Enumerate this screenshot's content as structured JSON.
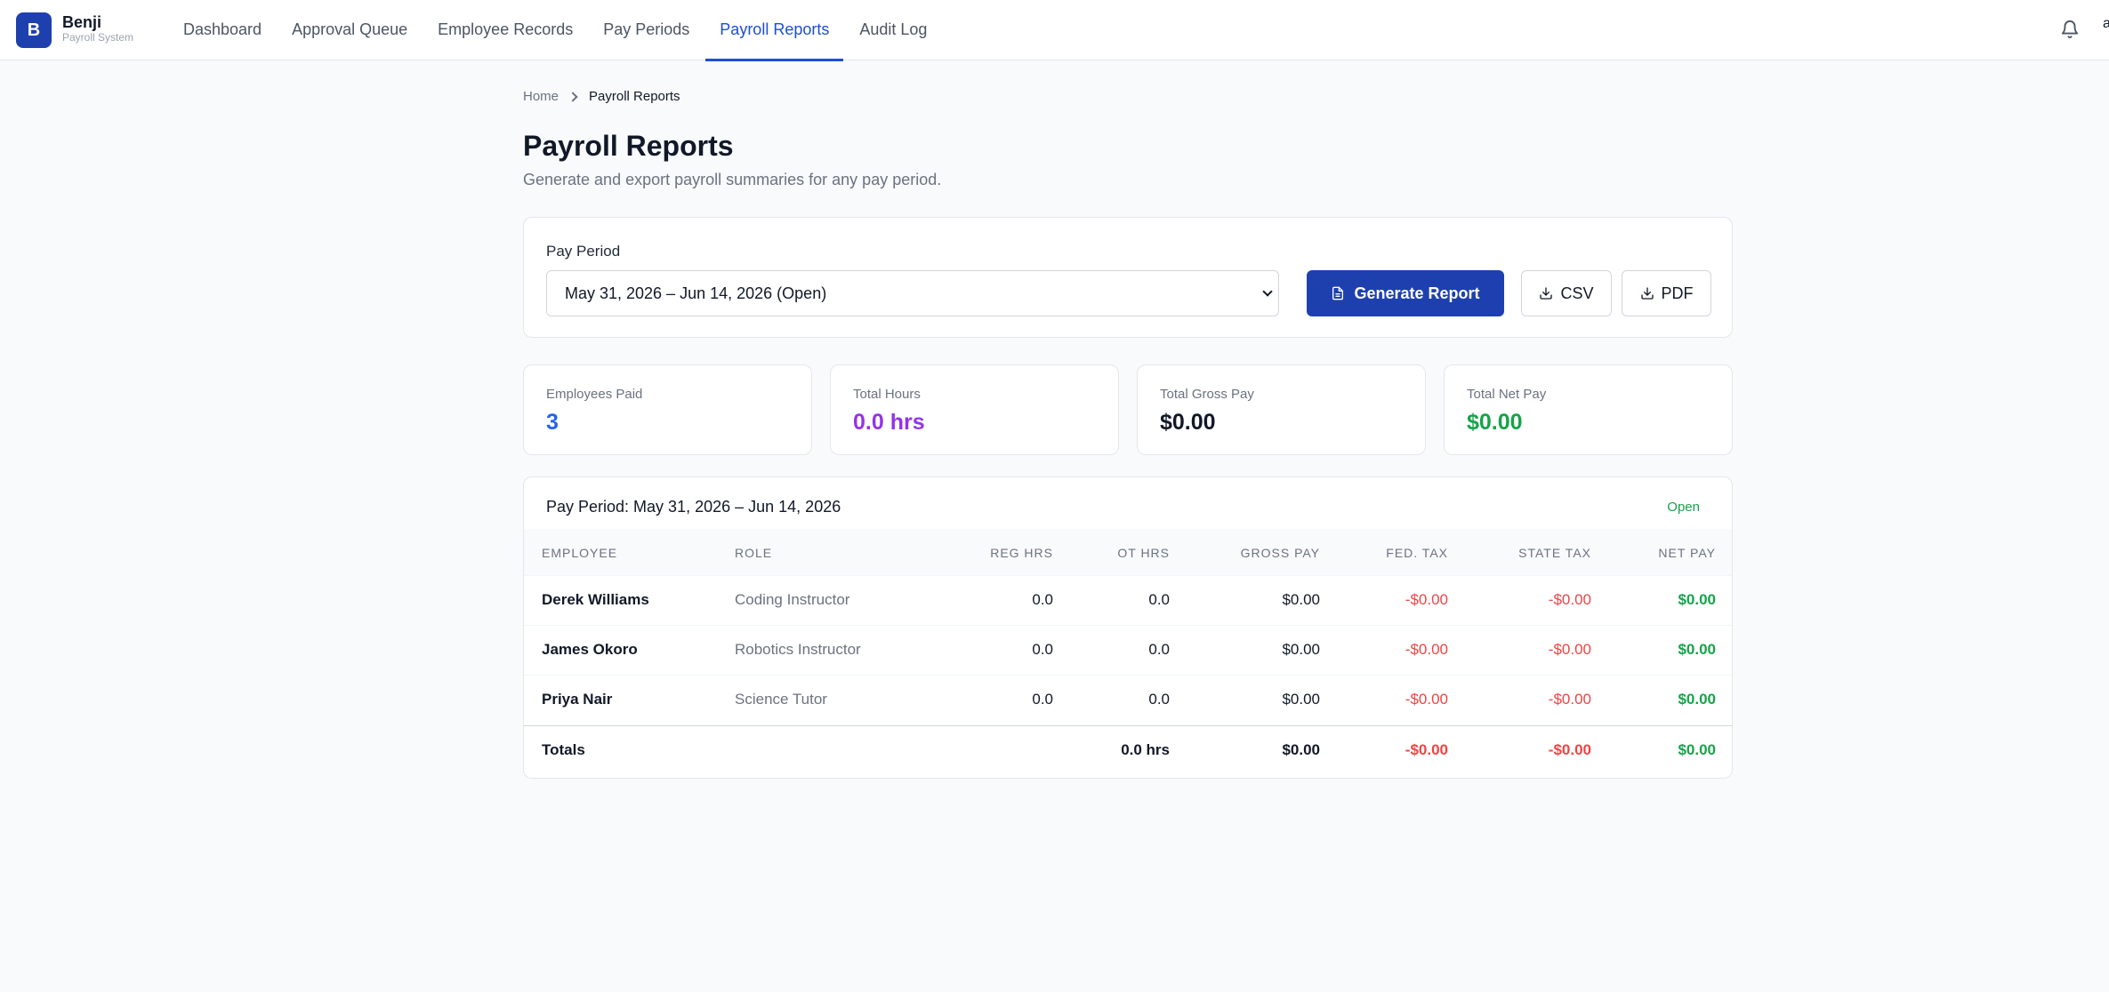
{
  "app": {
    "logo_letter": "B",
    "name": "Benji",
    "subtitle": "Payroll System"
  },
  "nav": {
    "items": [
      {
        "label": "Dashboard",
        "name": "nav-dashboard"
      },
      {
        "label": "Approval Queue",
        "name": "nav-approval-queue"
      },
      {
        "label": "Employee Records",
        "name": "nav-employee-records"
      },
      {
        "label": "Pay Periods",
        "name": "nav-pay-periods"
      },
      {
        "label": "Payroll Reports",
        "name": "nav-payroll-reports",
        "active": true
      },
      {
        "label": "Audit Log",
        "name": "nav-audit-log"
      }
    ],
    "avatar_initial": "a"
  },
  "breadcrumb": {
    "home": "Home",
    "current": "Payroll Reports"
  },
  "page": {
    "title": "Payroll Reports",
    "subtitle": "Generate and export payroll summaries for any pay period."
  },
  "controls": {
    "pay_period_label": "Pay Period",
    "pay_period_selected": "May 31, 2026 – Jun 14, 2026 (Open)",
    "generate_label": "Generate Report",
    "csv_label": "CSV",
    "pdf_label": "PDF"
  },
  "stats": {
    "employees_paid": {
      "label": "Employees Paid",
      "value": "3",
      "color": "#2563eb"
    },
    "total_hours": {
      "label": "Total Hours",
      "value": "0.0 hrs",
      "color": "#9333ea"
    },
    "total_gross": {
      "label": "Total Gross Pay",
      "value": "$0.00",
      "color": "#111827"
    },
    "total_net": {
      "label": "Total Net Pay",
      "value": "$0.00",
      "color": "#16a34a"
    }
  },
  "report": {
    "title": "Pay Period: May 31, 2026 – Jun 14, 2026",
    "status": "Open",
    "headers": {
      "employee": "Employee",
      "role": "Role",
      "reg_hrs": "Reg Hrs",
      "ot_hrs": "OT Hrs",
      "gross_pay": "Gross Pay",
      "fed_tax": "Fed. Tax",
      "state_tax": "State Tax",
      "net_pay": "Net Pay"
    },
    "rows": [
      {
        "employee": "Derek Williams",
        "role": "Coding Instructor",
        "reg_hrs": "0.0",
        "ot_hrs": "0.0",
        "gross_pay": "$0.00",
        "fed_tax": "-$0.00",
        "state_tax": "-$0.00",
        "net_pay": "$0.00"
      },
      {
        "employee": "James Okoro",
        "role": "Robotics Instructor",
        "reg_hrs": "0.0",
        "ot_hrs": "0.0",
        "gross_pay": "$0.00",
        "fed_tax": "-$0.00",
        "state_tax": "-$0.00",
        "net_pay": "$0.00"
      },
      {
        "employee": "Priya Nair",
        "role": "Science Tutor",
        "reg_hrs": "0.0",
        "ot_hrs": "0.0",
        "gross_pay": "$0.00",
        "fed_tax": "-$0.00",
        "state_tax": "-$0.00",
        "net_pay": "$0.00"
      }
    ],
    "totals": {
      "label": "Totals",
      "hours": "0.0 hrs",
      "gross_pay": "$0.00",
      "fed_tax": "-$0.00",
      "state_tax": "-$0.00",
      "net_pay": "$0.00"
    }
  },
  "colors": {
    "brand": "#1e40af",
    "accent": "#1d4ed8",
    "positive": "#16a34a",
    "negative": "#ef4444"
  },
  "icons": [
    "bell-icon",
    "document-icon",
    "download-icon",
    "chevron-right-icon",
    "chevron-down-icon"
  ]
}
